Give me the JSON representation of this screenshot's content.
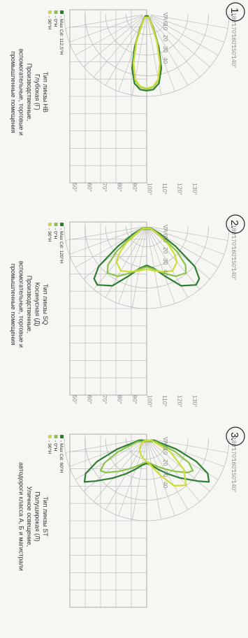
{
  "colors": {
    "background": "#f6f6f3",
    "grid": "#b5b5b5",
    "dark_green": "#2e7d32",
    "light_green": "#8bc34a",
    "yellow": "#cddc39",
    "text": "#333333"
  },
  "chart_data": [
    {
      "type": "polar",
      "number": "1.",
      "angle_ticks_top": [
        "180°",
        "170°",
        "160°",
        "150°",
        "140°"
      ],
      "angle_ticks_right": [
        "130°",
        "120°",
        "110°",
        "100°",
        "90°",
        "80°",
        "70°",
        "60°",
        "50°"
      ],
      "angle_ticks_inner": [
        "VA 0",
        "10",
        "20",
        "30",
        "40"
      ],
      "legend": [
        "- Max Cd: 112,5°H",
        "- 0°H",
        "- 90°H"
      ],
      "title_lines": [
        "Тип линзы HB",
        "Глубокая (Г)",
        "Производственные,",
        "вспомогательные, торговые и",
        "промышленные помещения"
      ],
      "series": [
        {
          "name": "- Max Cd: 112,5°H",
          "color": "#2e7d32",
          "angles": [
            0,
            5,
            10,
            15,
            20,
            25,
            30,
            35
          ],
          "values": [
            0.98,
            0.97,
            0.9,
            0.72,
            0.45,
            0.2,
            0.08,
            0.03
          ]
        },
        {
          "name": "- 0°H",
          "color": "#8bc34a",
          "angles": [
            0,
            5,
            10,
            15,
            20,
            25,
            30
          ],
          "values": [
            0.96,
            0.94,
            0.86,
            0.66,
            0.4,
            0.17,
            0.05
          ]
        },
        {
          "name": "- 90°H",
          "color": "#cddc39",
          "angles": [
            0,
            5,
            10,
            15,
            20,
            25,
            30
          ],
          "values": [
            0.95,
            0.93,
            0.85,
            0.65,
            0.38,
            0.16,
            0.05
          ]
        }
      ]
    },
    {
      "type": "polar",
      "number": "2.",
      "angle_ticks_top": [
        "180°",
        "170°",
        "160°",
        "150°",
        "140°"
      ],
      "angle_ticks_right": [
        "130°",
        "120°",
        "110°",
        "100°",
        "90°",
        "80°",
        "70°",
        "60°",
        "50°"
      ],
      "angle_ticks_inner": [
        "VA 0",
        "10",
        "20",
        "30",
        "40"
      ],
      "legend": [
        "- Max Cd: 120°H",
        "- 0°H",
        "- 90°H"
      ],
      "title_lines": [
        "Тип линзы SQ",
        "Косинусная (Д)",
        "Производственные,",
        "вспомогательные, торговые и",
        "промышленные помещения"
      ],
      "series": [
        {
          "name": "- Max Cd: 120°H",
          "color": "#2e7d32",
          "angles": [
            0,
            10,
            20,
            30,
            40,
            45,
            50,
            55,
            60,
            65
          ],
          "values": [
            0.5,
            0.55,
            0.68,
            0.88,
            0.98,
            0.95,
            0.8,
            0.45,
            0.2,
            0.05
          ]
        },
        {
          "name": "- 0°H",
          "color": "#8bc34a",
          "angles": [
            0,
            10,
            20,
            30,
            40,
            45,
            50,
            55,
            60
          ],
          "values": [
            0.52,
            0.56,
            0.64,
            0.74,
            0.78,
            0.7,
            0.5,
            0.25,
            0.08
          ]
        },
        {
          "name": "- 90°H",
          "color": "#cddc39",
          "angles": [
            0,
            10,
            20,
            30,
            40,
            45,
            50,
            55,
            60
          ],
          "values": [
            0.55,
            0.58,
            0.62,
            0.66,
            0.6,
            0.5,
            0.35,
            0.15,
            0.05
          ]
        }
      ]
    },
    {
      "type": "polar",
      "number": "3.",
      "angle_ticks_top": [
        "180°",
        "170°",
        "160°",
        "150°",
        "140°"
      ],
      "angle_ticks_right": [],
      "angle_ticks_inner": [
        "VA 0",
        "10",
        "20",
        "30",
        "40"
      ],
      "legend": [
        "- Max Cd: 60°H",
        "- 0°H",
        "- 90°H"
      ],
      "title_lines": [
        "Тип линзы ST",
        "Полуширокая (Л)",
        "Уличное освещение,",
        "автодороги класса А, Б и магистрали"
      ],
      "series": [
        {
          "name": "- Max Cd: 60°H",
          "color": "#2e7d32",
          "angles": [
            0,
            10,
            20,
            30,
            40,
            50,
            55,
            60,
            65,
            70,
            75
          ],
          "values": [
            0.32,
            0.35,
            0.42,
            0.52,
            0.66,
            0.85,
            0.97,
            0.9,
            0.7,
            0.4,
            0.1
          ]
        },
        {
          "name": "- 0°H",
          "color": "#8bc34a",
          "angles": [
            0,
            10,
            20,
            30,
            40,
            50,
            55,
            60,
            65,
            70
          ],
          "values": [
            0.3,
            0.33,
            0.38,
            0.45,
            0.55,
            0.68,
            0.72,
            0.62,
            0.4,
            0.12
          ]
        },
        {
          "name": "- 90°H",
          "color": "#cddc39",
          "angles": [
            -70,
            -60,
            -50,
            -40,
            -30,
            -20,
            -10,
            0,
            10,
            20,
            30,
            40,
            50
          ],
          "values": [
            0.06,
            0.35,
            0.62,
            0.78,
            0.7,
            0.5,
            0.36,
            0.3,
            0.26,
            0.22,
            0.18,
            0.12,
            0.05
          ]
        }
      ]
    }
  ]
}
